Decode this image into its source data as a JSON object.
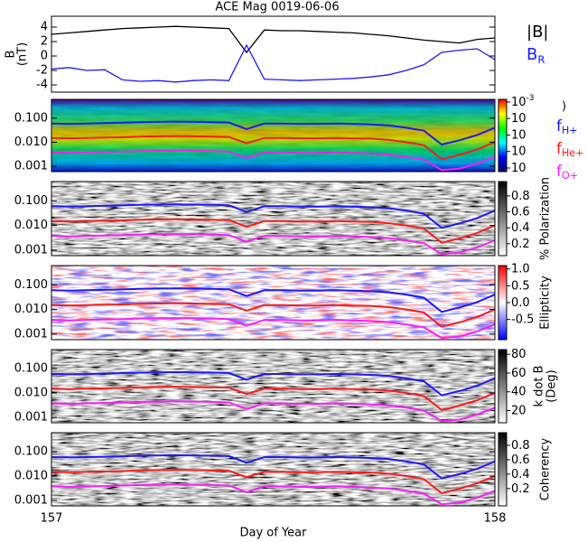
{
  "chart_data": [
    {
      "type": "line",
      "title": "ACE Mag 0019-06-06",
      "y_label": [
        "B",
        "(nT)"
      ],
      "x": [
        157,
        157.04,
        157.08,
        157.12,
        157.16,
        157.2,
        157.24,
        157.28,
        157.32,
        157.36,
        157.4,
        157.44,
        157.48,
        157.52,
        157.56,
        157.6,
        157.64,
        157.68,
        157.72,
        157.76,
        157.8,
        157.84,
        157.88,
        157.92,
        157.96,
        158
      ],
      "xlim": [
        157,
        158
      ],
      "ylim": [
        -5,
        5.5
      ],
      "yticks": [
        -4,
        -2,
        0,
        2,
        4
      ],
      "series": [
        {
          "name": "|B|",
          "color": "#000000",
          "values": [
            3.0,
            3.2,
            3.4,
            3.6,
            3.8,
            3.9,
            4.0,
            4.1,
            4.0,
            3.9,
            3.8,
            0.5,
            3.6,
            3.5,
            3.5,
            3.4,
            3.3,
            3.2,
            3.0,
            2.8,
            2.5,
            2.2,
            2.0,
            1.8,
            2.3,
            2.5
          ]
        },
        {
          "name": "B",
          "name_sub": "R",
          "color": "#1a1aff",
          "values": [
            -1.8,
            -1.6,
            -2.0,
            -1.9,
            -3.3,
            -3.5,
            -3.4,
            -3.6,
            -3.4,
            -3.3,
            -3.4,
            1.5,
            -3.2,
            -3.3,
            -3.4,
            -3.3,
            -3.2,
            -3.1,
            -2.9,
            -2.6,
            -2.0,
            -1.2,
            0.5,
            0.8,
            1.0,
            -0.5
          ]
        }
      ]
    },
    {
      "type": "spectrogram",
      "x_label": "Day of Year",
      "x": [
        157,
        157.04,
        157.08,
        157.12,
        157.16,
        157.2,
        157.24,
        157.28,
        157.32,
        157.36,
        157.4,
        157.44,
        157.48,
        157.52,
        157.56,
        157.6,
        157.64,
        157.68,
        157.72,
        157.76,
        157.8,
        157.84,
        157.88,
        157.92,
        157.96,
        158
      ],
      "xlim": [
        157,
        158
      ],
      "xticks": [
        157,
        158
      ],
      "ylim": [
        0.0006,
        0.6
      ],
      "log_y": true,
      "yticks": [
        {
          "value": 0.001,
          "label": "0.001"
        },
        {
          "value": 0.01,
          "label": "0.010"
        },
        {
          "value": 0.1,
          "label": "0.100"
        }
      ],
      "series": [
        {
          "name": "f",
          "name_sub": "H+",
          "color": "#1a1aff",
          "values": [
            0.06,
            0.058,
            0.06,
            0.062,
            0.065,
            0.068,
            0.07,
            0.072,
            0.07,
            0.068,
            0.066,
            0.035,
            0.06,
            0.06,
            0.058,
            0.058,
            0.06,
            0.058,
            0.055,
            0.05,
            0.04,
            0.03,
            0.008,
            0.012,
            0.02,
            0.04
          ]
        },
        {
          "name": "f",
          "name_sub": "He+",
          "color": "#ff1a1a",
          "values": [
            0.015,
            0.0145,
            0.015,
            0.0155,
            0.016,
            0.017,
            0.0175,
            0.018,
            0.0175,
            0.017,
            0.0165,
            0.009,
            0.015,
            0.015,
            0.0145,
            0.0145,
            0.015,
            0.0145,
            0.014,
            0.0125,
            0.01,
            0.0075,
            0.002,
            0.003,
            0.005,
            0.01
          ]
        },
        {
          "name": "f",
          "name_sub": "O+",
          "color": "#ff1aff",
          "values": [
            0.0038,
            0.0036,
            0.0038,
            0.0039,
            0.0041,
            0.0043,
            0.0044,
            0.0045,
            0.0044,
            0.0043,
            0.0041,
            0.0022,
            0.0038,
            0.0038,
            0.0036,
            0.0036,
            0.0038,
            0.0036,
            0.0034,
            0.0031,
            0.0025,
            0.0019,
            0.0007,
            0.0008,
            0.0013,
            0.0025
          ]
        }
      ],
      "panels": [
        {
          "colormap": "rainbow",
          "colorbar_label": [
            ")"
          ],
          "clim": [
            -7.22,
            -2.84
          ],
          "colorbar_ticks": [
            {
              "value": -3,
              "label": "10",
              "exp": "-3"
            },
            {
              "value": -4,
              "label": "10"
            },
            {
              "value": -5,
              "label": "10"
            },
            {
              "value": -6,
              "label": "10"
            },
            {
              "value": -7,
              "label": "10"
            }
          ]
        },
        {
          "colormap": "gray",
          "colorbar_label": [
            "% Polarization"
          ],
          "clim": [
            0.05,
            0.98
          ],
          "colorbar_ticks": [
            0.2,
            0.4,
            0.6,
            0.8
          ]
        },
        {
          "colormap": "bwr",
          "colorbar_label": [
            "Ellipticity"
          ],
          "clim": [
            -1.1,
            1.1
          ],
          "colorbar_ticks": [
            {
              "value": -0.5,
              "label": "-0.5"
            },
            {
              "value": 0,
              "label": "0.0"
            },
            {
              "value": 0.5,
              "label": "0.5"
            },
            {
              "value": 1,
              "label": "1.0"
            }
          ]
        },
        {
          "colormap": "gray",
          "colorbar_label": [
            "k dot B",
            "(Deg)"
          ],
          "clim": [
            7,
            85
          ],
          "colorbar_ticks": [
            20,
            40,
            60,
            80
          ]
        },
        {
          "colormap": "gray",
          "colorbar_label": [
            "Coherency"
          ],
          "clim": [
            -0.04,
            0.975
          ],
          "colorbar_ticks": [
            0.2,
            0.4,
            0.6,
            0.8
          ]
        }
      ]
    }
  ]
}
